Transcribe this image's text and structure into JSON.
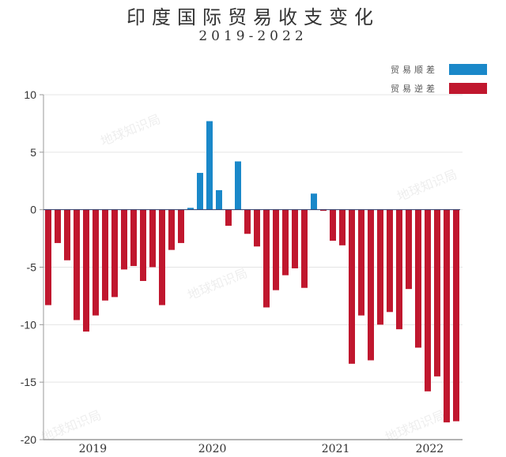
{
  "chart_data": {
    "type": "bar",
    "title": "印度国际贸易收支变化",
    "subtitle": "2019-2022",
    "ylim": [
      -20,
      10
    ],
    "yticks": [
      10,
      5,
      0,
      -5,
      -10,
      -15,
      -20
    ],
    "grid": true,
    "legend_position": "top-right",
    "legend": [
      {
        "name": "贸易顺差",
        "color": "#1a88c9"
      },
      {
        "name": "贸易逆差",
        "color": "#c0172e"
      }
    ],
    "xticks": [
      {
        "label": "2019",
        "at": 5.7
      },
      {
        "label": "2020",
        "at": 18.3
      },
      {
        "label": "2021",
        "at": 31.3
      },
      {
        "label": "2022",
        "at": 41.2
      }
    ],
    "values": [
      -8.3,
      -2.9,
      -4.4,
      -9.6,
      -10.6,
      -9.2,
      -7.9,
      -7.6,
      -5.2,
      -4.9,
      -6.2,
      -5.0,
      -8.3,
      -3.5,
      -2.9,
      0.16,
      3.2,
      7.7,
      1.7,
      -1.4,
      4.2,
      -2.1,
      -3.2,
      -8.5,
      -7.0,
      -5.7,
      -5.1,
      -6.8,
      1.4,
      -0.1,
      -2.7,
      -3.1,
      -13.4,
      -9.2,
      -13.1,
      -10.0,
      -8.9,
      -10.4,
      -6.9,
      -12.0,
      -15.8,
      -14.5,
      -18.5,
      -18.4
    ]
  },
  "watermark": "地球知识局"
}
